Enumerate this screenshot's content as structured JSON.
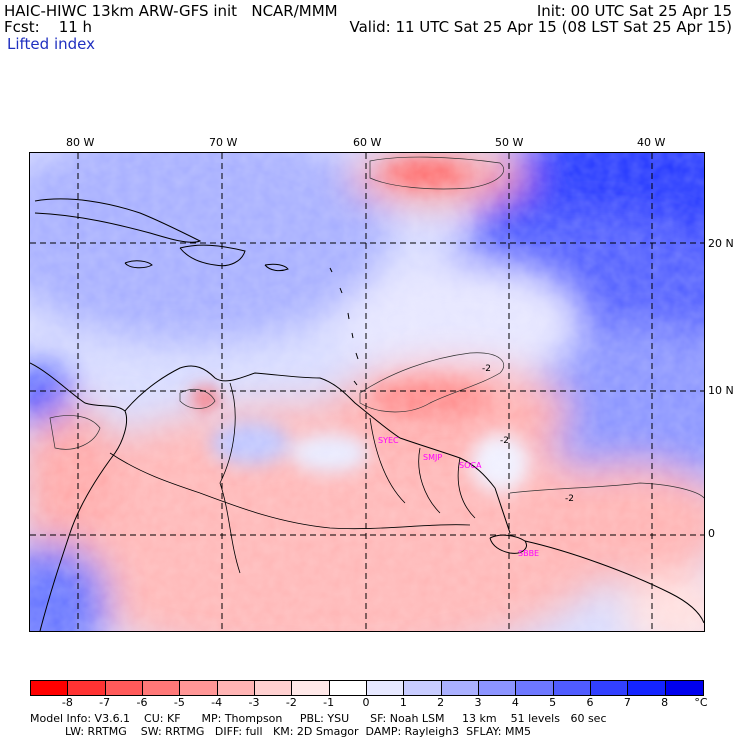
{
  "header": {
    "model_title": "HAIC-HIWC 13km ARW-GFS init   NCAR/MMM",
    "init": "Init: 00 UTC Sat 25 Apr 15",
    "fcst": "Fcst:    11 h",
    "valid": "Valid: 11 UTC Sat 25 Apr 15 (08 LST Sat 25 Apr 15)",
    "field": "Lifted index"
  },
  "map": {
    "lon_labels": [
      "80 W",
      "70 W",
      "60 W",
      "50 W",
      "40 W"
    ],
    "lat_labels": [
      "20 N",
      "10 N",
      "0"
    ],
    "contour_labels": [
      "-2",
      "-2",
      "-2"
    ],
    "stations": [
      "SYEC",
      "SMJP",
      "SOCA",
      "SBBE"
    ],
    "station_color": "#ff00ff"
  },
  "colorbar": {
    "colors": [
      "#ff0000",
      "#ff3333",
      "#ff5a5a",
      "#ff7878",
      "#ff9696",
      "#ffb4b4",
      "#ffd0d0",
      "#ffe8e8",
      "#ffffff",
      "#e6e8ff",
      "#c8ccff",
      "#aab0ff",
      "#8c94ff",
      "#6e78ff",
      "#505cff",
      "#3240ff",
      "#1424ff",
      "#0000ee"
    ],
    "labels": [
      "-8",
      "-7",
      "-6",
      "-5",
      "-4",
      "-3",
      "-2",
      "-1",
      "0",
      "1",
      "2",
      "3",
      "4",
      "5",
      "6",
      "7",
      "8"
    ],
    "unit": "°C"
  },
  "footer": {
    "line1": "Model Info: V3.6.1    CU: KF      MP: Thompson     PBL: YSU      SF: Noah LSM     13 km    51 levels   60 sec",
    "line2": "          LW: RRTMG    SW: RRTMG   DIFF: full   KM: 2D Smagor  DAMP: Rayleigh3  SFLAY: MM5"
  }
}
